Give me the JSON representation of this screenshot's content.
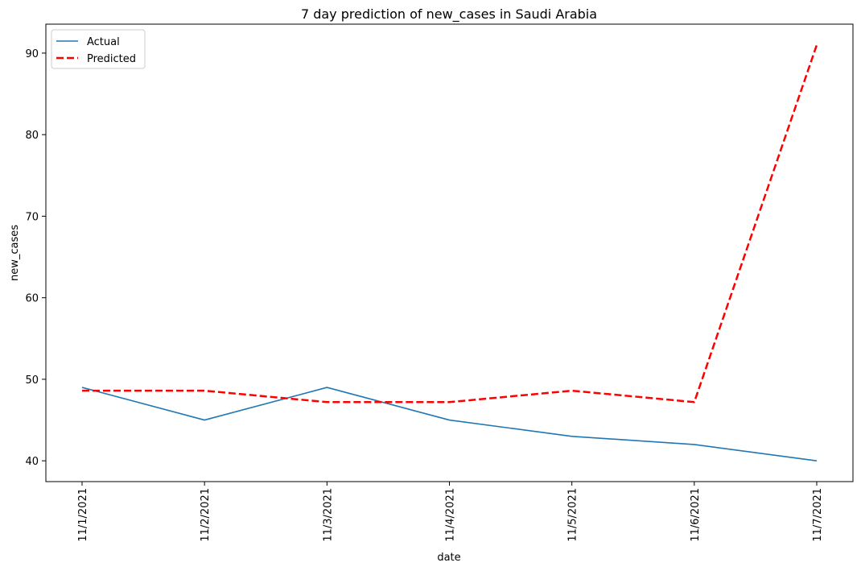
{
  "chart_data": {
    "type": "line",
    "title": "7 day prediction of new_cases in Saudi Arabia",
    "xlabel": "date",
    "ylabel": "new_cases",
    "categories": [
      "11/1/2021",
      "11/2/2021",
      "11/3/2021",
      "11/4/2021",
      "11/5/2021",
      "11/6/2021",
      "11/7/2021"
    ],
    "yticks": [
      40,
      50,
      60,
      70,
      80,
      90
    ],
    "ylim": [
      37.45,
      93.55
    ],
    "grid": false,
    "legend_position": "top-left",
    "series": [
      {
        "name": "Actual",
        "color": "#1f77b4",
        "style": "solid",
        "values": [
          49,
          45,
          49,
          45,
          43,
          42,
          40
        ]
      },
      {
        "name": "Predicted",
        "color": "#ff0000",
        "style": "dashed",
        "values": [
          48.6,
          48.6,
          47.2,
          47.2,
          48.6,
          47.2,
          91
        ]
      }
    ]
  }
}
